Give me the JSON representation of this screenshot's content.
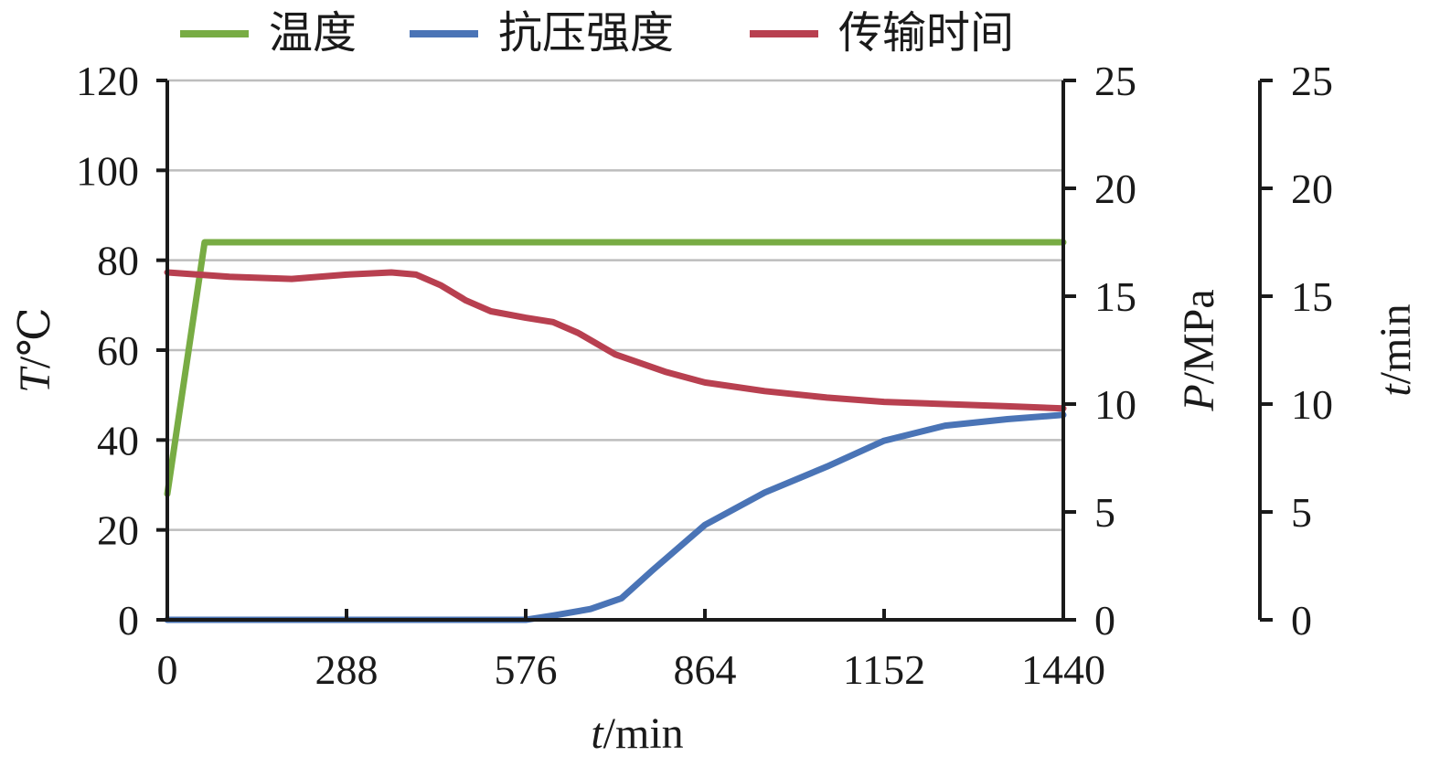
{
  "chart_data": {
    "type": "line",
    "legend": {
      "placement": "top",
      "entries": [
        {
          "label": "温度",
          "color": "#78ac44"
        },
        {
          "label": "抗压强度",
          "color": "#4a74b6"
        },
        {
          "label": "传输时间",
          "color": "#b84050"
        }
      ]
    },
    "x_axis": {
      "label_italic": "t",
      "label_unit": "/min",
      "range": [
        0,
        1440
      ],
      "ticks": [
        "0",
        "288",
        "576",
        "864",
        "1152",
        "1440"
      ]
    },
    "y_left": {
      "label_italic": "T",
      "label_unit": "/℃",
      "range": [
        0,
        120
      ],
      "ticks": [
        "0",
        "20",
        "40",
        "60",
        "80",
        "100",
        "120"
      ]
    },
    "y_right": {
      "label_italic": "P",
      "label_unit": "/MPa",
      "range": [
        0,
        25
      ],
      "ticks": [
        "0",
        "5",
        "10",
        "15",
        "20",
        "25"
      ]
    },
    "y_right2": {
      "label_italic": "t",
      "label_unit": "/min",
      "range": [
        0,
        25
      ],
      "ticks": [
        "0",
        "5",
        "10",
        "15",
        "20",
        "25"
      ]
    },
    "grid": "horizontal",
    "series": [
      {
        "name": "温度",
        "axis": "left",
        "color": "#78ac44",
        "x": [
          0,
          60,
          200,
          400,
          576,
          760,
          1000,
          1200,
          1440
        ],
        "y": [
          28,
          84,
          84,
          84,
          84,
          84,
          84,
          84,
          84
        ]
      },
      {
        "name": "抗压强度",
        "axis": "right",
        "color": "#4a74b6",
        "x": [
          0,
          200,
          400,
          576,
          620,
          680,
          730,
          780,
          864,
          960,
          1060,
          1152,
          1250,
          1350,
          1440
        ],
        "y": [
          0,
          0,
          0,
          0,
          0.2,
          0.5,
          1.0,
          2.3,
          4.4,
          5.9,
          7.1,
          8.3,
          9.0,
          9.3,
          9.5
        ]
      },
      {
        "name": "传输时间",
        "axis": "right2",
        "color": "#b84050",
        "x": [
          0,
          100,
          200,
          288,
          360,
          400,
          440,
          480,
          520,
          576,
          620,
          660,
          720,
          800,
          864,
          960,
          1060,
          1152,
          1250,
          1350,
          1440
        ],
        "y": [
          16.1,
          15.9,
          15.8,
          16.0,
          16.1,
          16.0,
          15.5,
          14.8,
          14.3,
          14.0,
          13.8,
          13.3,
          12.3,
          11.5,
          11.0,
          10.6,
          10.3,
          10.1,
          10.0,
          9.9,
          9.8
        ]
      }
    ]
  }
}
